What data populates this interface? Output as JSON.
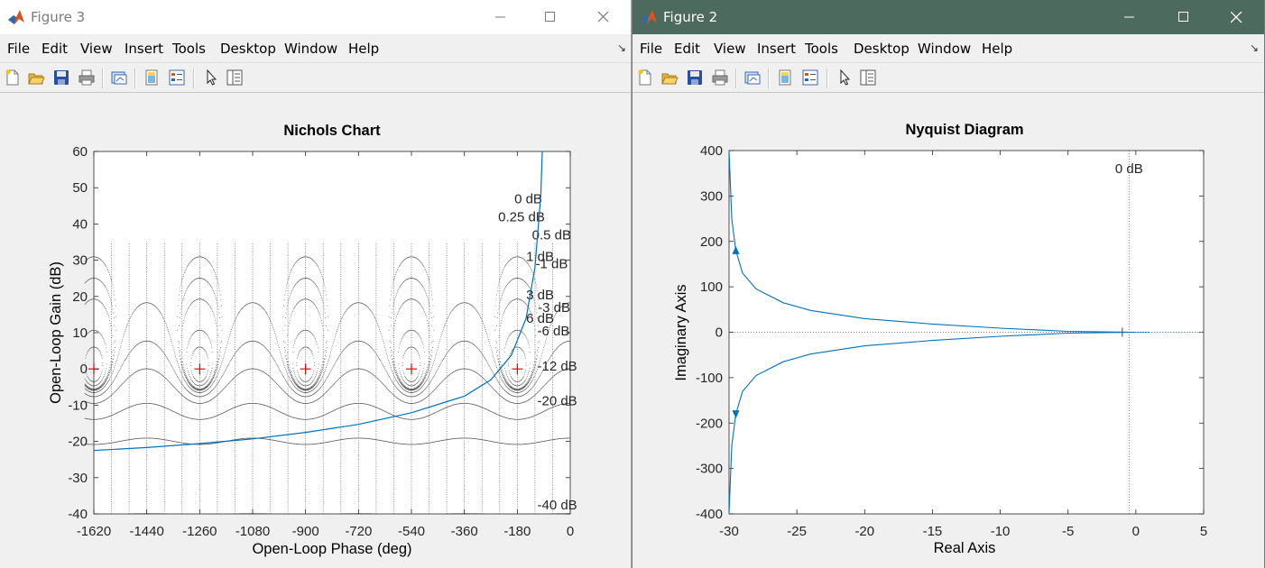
{
  "windows": [
    {
      "title": "Figure 3",
      "menu": [
        "File",
        "Edit",
        "View",
        "Insert",
        "Tools",
        "Desktop",
        "Window",
        "Help"
      ],
      "axes": {
        "title": "Nichols Chart",
        "xlabel": "Open-Loop Phase (deg)",
        "ylabel": "Open-Loop Gain (dB)",
        "xticks": [
          "-1620",
          "-1440",
          "-1260",
          "-1080",
          "-900",
          "-720",
          "-540",
          "-360",
          "-180",
          "0"
        ],
        "yticks": [
          "60",
          "50",
          "40",
          "30",
          "20",
          "10",
          "0",
          "-10",
          "-20",
          "-30",
          "-40"
        ],
        "grid_labels": [
          "0 dB",
          "0.25 dB",
          "0.5 dB",
          "1 dB",
          "-1 dB",
          "3 dB",
          "-3 dB",
          "6 dB",
          "-6 dB",
          "-12 dB",
          "-20 dB",
          "-40 dB"
        ]
      }
    },
    {
      "title": "Figure 2",
      "menu": [
        "File",
        "Edit",
        "View",
        "Insert",
        "Tools",
        "Desktop",
        "Window",
        "Help"
      ],
      "axes": {
        "title": "Nyquist Diagram",
        "xlabel": "Real Axis",
        "ylabel": "Imaginary Axis",
        "xticks": [
          "-30",
          "-25",
          "-20",
          "-15",
          "-10",
          "-5",
          "0",
          "5"
        ],
        "yticks": [
          "400",
          "300",
          "200",
          "100",
          "0",
          "-100",
          "-200",
          "-300",
          "-400"
        ],
        "grid_labels": [
          "0 dB"
        ]
      }
    }
  ],
  "chart_data": [
    {
      "type": "line",
      "title": "Nichols Chart",
      "xlabel": "Open-Loop Phase (deg)",
      "ylabel": "Open-Loop Gain (dB)",
      "xlim": [
        -1620,
        0
      ],
      "ylim": [
        -40,
        60
      ],
      "grid": true,
      "grid_labels": [
        "0 dB",
        "0.25 dB",
        "0.5 dB",
        "1 dB",
        "-1 dB",
        "3 dB",
        "-3 dB",
        "6 dB",
        "-6 dB",
        "-12 dB",
        "-20 dB",
        "-40 dB"
      ],
      "critical_points": [
        [
          -1620,
          0
        ],
        [
          -1260,
          0
        ],
        [
          -900,
          0
        ],
        [
          -540,
          0
        ],
        [
          -180,
          0
        ]
      ],
      "series": [
        {
          "color": "#0072bd",
          "x": [
            -1620,
            -1440,
            -1260,
            -1080,
            -900,
            -720,
            -540,
            -360,
            -270,
            -200,
            -150,
            -120,
            -100,
            -95
          ],
          "y": [
            -22.5,
            -21.7,
            -20.6,
            -19.3,
            -17.5,
            -15.3,
            -12.1,
            -7.5,
            -3,
            3.8,
            14,
            28,
            48,
            60
          ]
        }
      ]
    },
    {
      "type": "line",
      "title": "Nyquist Diagram",
      "xlabel": "Real Axis",
      "ylabel": "Imaginary Axis",
      "xlim": [
        -30,
        5
      ],
      "ylim": [
        -400,
        400
      ],
      "grid_labels": [
        "0 dB"
      ],
      "critical_point": [
        -1,
        0
      ],
      "series": [
        {
          "color": "#0072bd",
          "x": [
            -30,
            -29.8,
            -29.5,
            -29,
            -28,
            -26,
            -24,
            -20,
            -15,
            -10,
            -5,
            -2,
            0,
            1
          ],
          "y": [
            400,
            250,
            180,
            130,
            95,
            65,
            48,
            30,
            18,
            9,
            2,
            0.5,
            0,
            0
          ]
        },
        {
          "color": "#0072bd",
          "x": [
            -30,
            -29.8,
            -29.5,
            -29,
            -28,
            -26,
            -24,
            -20,
            -15,
            -10,
            -5,
            -2,
            0,
            1
          ],
          "y": [
            -400,
            -250,
            -180,
            -130,
            -95,
            -65,
            -48,
            -30,
            -18,
            -9,
            -2,
            -0.5,
            0,
            0
          ]
        }
      ]
    }
  ]
}
